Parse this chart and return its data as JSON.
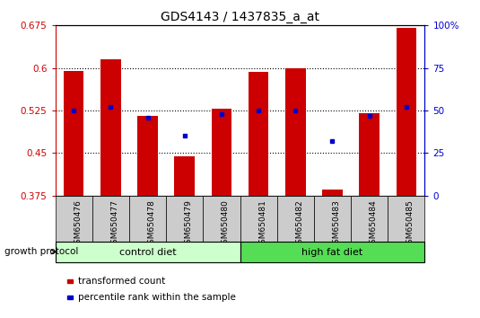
{
  "title": "GDS4143 / 1437835_a_at",
  "samples": [
    "GSM650476",
    "GSM650477",
    "GSM650478",
    "GSM650479",
    "GSM650480",
    "GSM650481",
    "GSM650482",
    "GSM650483",
    "GSM650484",
    "GSM650485"
  ],
  "transformed_count": [
    0.595,
    0.615,
    0.515,
    0.445,
    0.528,
    0.593,
    0.6,
    0.385,
    0.52,
    0.67
  ],
  "percentile_rank_pct": [
    50,
    52,
    46,
    35,
    48,
    50,
    50,
    32,
    47,
    52
  ],
  "ylim_left": [
    0.375,
    0.675
  ],
  "ylim_right": [
    0,
    100
  ],
  "yticks_left": [
    0.375,
    0.45,
    0.525,
    0.6,
    0.675
  ],
  "ytick_labels_left": [
    "0.375",
    "0.45",
    "0.525",
    "0.6",
    "0.675"
  ],
  "yticks_right": [
    0,
    25,
    50,
    75,
    100
  ],
  "ytick_labels_right": [
    "0",
    "25",
    "50",
    "75",
    "100%"
  ],
  "groups": [
    {
      "label": "control diet",
      "start": 0,
      "end": 5,
      "color": "#ccffcc"
    },
    {
      "label": "high fat diet",
      "start": 5,
      "end": 10,
      "color": "#55dd55"
    }
  ],
  "group_label": "growth protocol",
  "bar_color": "#cc0000",
  "dot_color": "#0000cc",
  "bar_bottom": 0.375,
  "legend_items": [
    {
      "label": "transformed count",
      "color": "#cc0000"
    },
    {
      "label": "percentile rank within the sample",
      "color": "#0000cc"
    }
  ],
  "grid_color": "#000000",
  "sample_bg_color": "#cccccc",
  "bar_width": 0.55
}
